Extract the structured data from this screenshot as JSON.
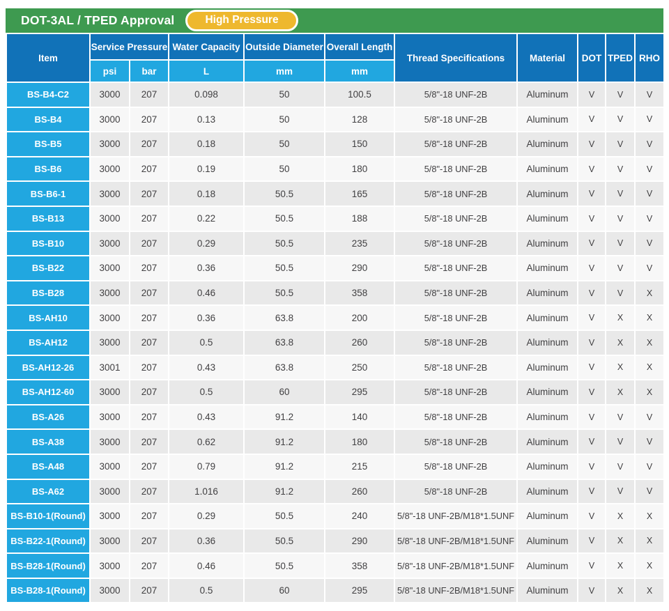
{
  "header_bar": {
    "title": "DOT-3AL / TPED Approval",
    "badge_label": "High Pressure"
  },
  "colors": {
    "green_bar": "#3e9a50",
    "badge_gold": "#eeb82e",
    "header_dark_blue": "#1172b8",
    "header_cyan": "#21a7e0",
    "row_odd": "#e9e9e9",
    "row_even": "#f7f7f7",
    "data_text": "#414042",
    "white": "#ffffff"
  },
  "table": {
    "header": {
      "item_label": "Item",
      "service_pressure": "Service Pressure",
      "water_capacity": "Water Capacity",
      "outside_diameter": "Outside Diameter",
      "overall_length": "Overall Length",
      "thread_specifications": "Thread Specifications",
      "material": "Material",
      "dot": "DOT",
      "tped": "TPED",
      "rho": "RHO",
      "sub_psi": "psi",
      "sub_bar": "bar",
      "sub_l": "L",
      "sub_mm_od": "mm",
      "sub_mm_ol": "mm"
    },
    "column_keys": [
      "item",
      "psi",
      "bar",
      "capacity",
      "od",
      "ol",
      "thread",
      "material",
      "dot",
      "tped",
      "rho"
    ],
    "rows": [
      {
        "item": "BS-B4-C2",
        "psi": "3000",
        "bar": "207",
        "capacity": "0.098",
        "od": "50",
        "ol": "100.5",
        "thread": "5/8\"-18 UNF-2B",
        "material": "Aluminum",
        "dot": "V",
        "tped": "V",
        "rho": "V"
      },
      {
        "item": "BS-B4",
        "psi": "3000",
        "bar": "207",
        "capacity": "0.13",
        "od": "50",
        "ol": "128",
        "thread": "5/8\"-18 UNF-2B",
        "material": "Aluminum",
        "dot": "V",
        "tped": "V",
        "rho": "V"
      },
      {
        "item": "BS-B5",
        "psi": "3000",
        "bar": "207",
        "capacity": "0.18",
        "od": "50",
        "ol": "150",
        "thread": "5/8\"-18 UNF-2B",
        "material": "Aluminum",
        "dot": "V",
        "tped": "V",
        "rho": "V"
      },
      {
        "item": "BS-B6",
        "psi": "3000",
        "bar": "207",
        "capacity": "0.19",
        "od": "50",
        "ol": "180",
        "thread": "5/8\"-18 UNF-2B",
        "material": "Aluminum",
        "dot": "V",
        "tped": "V",
        "rho": "V"
      },
      {
        "item": "BS-B6-1",
        "psi": "3000",
        "bar": "207",
        "capacity": "0.18",
        "od": "50.5",
        "ol": "165",
        "thread": "5/8\"-18 UNF-2B",
        "material": "Aluminum",
        "dot": "V",
        "tped": "V",
        "rho": "V"
      },
      {
        "item": "BS-B13",
        "psi": "3000",
        "bar": "207",
        "capacity": "0.22",
        "od": "50.5",
        "ol": "188",
        "thread": "5/8\"-18 UNF-2B",
        "material": "Aluminum",
        "dot": "V",
        "tped": "V",
        "rho": "V"
      },
      {
        "item": "BS-B10",
        "psi": "3000",
        "bar": "207",
        "capacity": "0.29",
        "od": "50.5",
        "ol": "235",
        "thread": "5/8\"-18 UNF-2B",
        "material": "Aluminum",
        "dot": "V",
        "tped": "V",
        "rho": "V"
      },
      {
        "item": "BS-B22",
        "psi": "3000",
        "bar": "207",
        "capacity": "0.36",
        "od": "50.5",
        "ol": "290",
        "thread": "5/8\"-18 UNF-2B",
        "material": "Aluminum",
        "dot": "V",
        "tped": "V",
        "rho": "V"
      },
      {
        "item": "BS-B28",
        "psi": "3000",
        "bar": "207",
        "capacity": "0.46",
        "od": "50.5",
        "ol": "358",
        "thread": "5/8\"-18 UNF-2B",
        "material": "Aluminum",
        "dot": "V",
        "tped": "V",
        "rho": "X"
      },
      {
        "item": "BS-AH10",
        "psi": "3000",
        "bar": "207",
        "capacity": "0.36",
        "od": "63.8",
        "ol": "200",
        "thread": "5/8\"-18 UNF-2B",
        "material": "Aluminum",
        "dot": "V",
        "tped": "X",
        "rho": "X"
      },
      {
        "item": "BS-AH12",
        "psi": "3000",
        "bar": "207",
        "capacity": "0.5",
        "od": "63.8",
        "ol": "260",
        "thread": "5/8\"-18 UNF-2B",
        "material": "Aluminum",
        "dot": "V",
        "tped": "X",
        "rho": "X"
      },
      {
        "item": "BS-AH12-26",
        "psi": "3001",
        "bar": "207",
        "capacity": "0.43",
        "od": "63.8",
        "ol": "250",
        "thread": "5/8\"-18 UNF-2B",
        "material": "Aluminum",
        "dot": "V",
        "tped": "X",
        "rho": "X"
      },
      {
        "item": "BS-AH12-60",
        "psi": "3000",
        "bar": "207",
        "capacity": "0.5",
        "od": "60",
        "ol": "295",
        "thread": "5/8\"-18 UNF-2B",
        "material": "Aluminum",
        "dot": "V",
        "tped": "X",
        "rho": "X"
      },
      {
        "item": "BS-A26",
        "psi": "3000",
        "bar": "207",
        "capacity": "0.43",
        "od": "91.2",
        "ol": "140",
        "thread": "5/8\"-18 UNF-2B",
        "material": "Aluminum",
        "dot": "V",
        "tped": "V",
        "rho": "V"
      },
      {
        "item": "BS-A38",
        "psi": "3000",
        "bar": "207",
        "capacity": "0.62",
        "od": "91.2",
        "ol": "180",
        "thread": "5/8\"-18 UNF-2B",
        "material": "Aluminum",
        "dot": "V",
        "tped": "V",
        "rho": "V"
      },
      {
        "item": "BS-A48",
        "psi": "3000",
        "bar": "207",
        "capacity": "0.79",
        "od": "91.2",
        "ol": "215",
        "thread": "5/8\"-18 UNF-2B",
        "material": "Aluminum",
        "dot": "V",
        "tped": "V",
        "rho": "V"
      },
      {
        "item": "BS-A62",
        "psi": "3000",
        "bar": "207",
        "capacity": "1.016",
        "od": "91.2",
        "ol": "260",
        "thread": "5/8\"-18 UNF-2B",
        "material": "Aluminum",
        "dot": "V",
        "tped": "V",
        "rho": "V"
      },
      {
        "item": "BS-B10-1(Round)",
        "psi": "3000",
        "bar": "207",
        "capacity": "0.29",
        "od": "50.5",
        "ol": "240",
        "thread": "5/8\"-18 UNF-2B/M18*1.5UNF",
        "material": "Aluminum",
        "dot": "V",
        "tped": "X",
        "rho": "X"
      },
      {
        "item": "BS-B22-1(Round)",
        "psi": "3000",
        "bar": "207",
        "capacity": "0.36",
        "od": "50.5",
        "ol": "290",
        "thread": "5/8\"-18 UNF-2B/M18*1.5UNF",
        "material": "Aluminum",
        "dot": "V",
        "tped": "X",
        "rho": "X"
      },
      {
        "item": "BS-B28-1(Round)",
        "psi": "3000",
        "bar": "207",
        "capacity": "0.46",
        "od": "50.5",
        "ol": "358",
        "thread": "5/8\"-18 UNF-2B/M18*1.5UNF",
        "material": "Aluminum",
        "dot": "V",
        "tped": "X",
        "rho": "X"
      },
      {
        "item": "BS-B28-1(Round)",
        "psi": "3000",
        "bar": "207",
        "capacity": "0.5",
        "od": "60",
        "ol": "295",
        "thread": "5/8\"-18 UNF-2B/M18*1.5UNF",
        "material": "Aluminum",
        "dot": "V",
        "tped": "X",
        "rho": "X"
      }
    ]
  }
}
